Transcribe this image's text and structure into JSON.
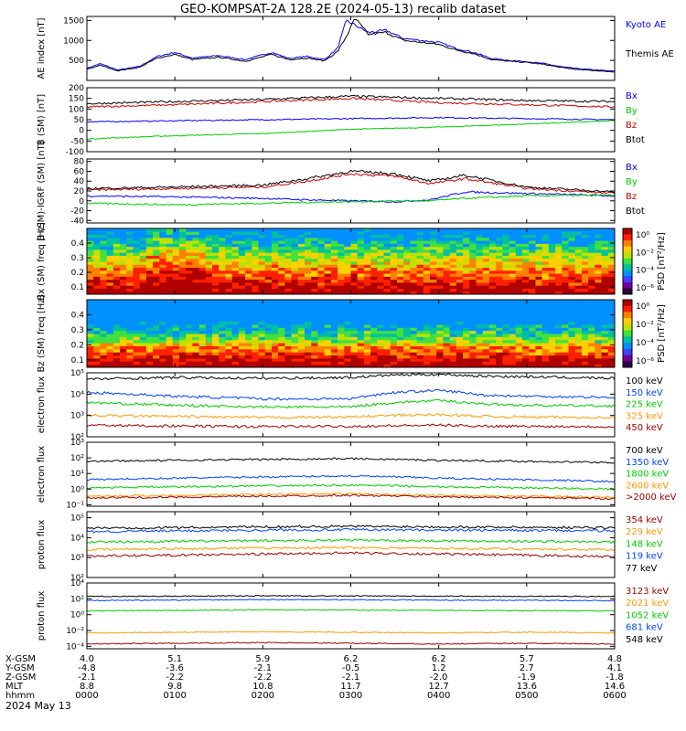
{
  "title": "GEO-KOMPSAT-2A 128.2E (2024-05-13) recalib dataset",
  "date_label": "2024 May 13",
  "colors": {
    "black": "#000000",
    "blue": "#0000ff",
    "green": "#00cc00",
    "red": "#cc0000",
    "orange": "#ff9900",
    "darkred": "#990000",
    "royalblue": "#0040ff"
  },
  "ephemeris": {
    "row_labels": [
      "X-GSM",
      "Y-GSM",
      "Z-GSM",
      "MLT",
      "hhmm"
    ],
    "columns": [
      [
        "4.0",
        "-4.8",
        "-2.1",
        "8.8",
        "0000"
      ],
      [
        "5.1",
        "-3.6",
        "-2.2",
        "9.8",
        "0100"
      ],
      [
        "5.9",
        "-2.1",
        "-2.2",
        "10.8",
        "0200"
      ],
      [
        "6.2",
        "-0.5",
        "-2.1",
        "11.7",
        "0300"
      ],
      [
        "6.2",
        "1.2",
        "-2.0",
        "12.7",
        "0400"
      ],
      [
        "5.7",
        "2.7",
        "-1.9",
        "13.6",
        "0500"
      ],
      [
        "4.8",
        "4.1",
        "-1.8",
        "14.6",
        "0600"
      ]
    ]
  },
  "chart_data": [
    {
      "type": "line",
      "ylabel": "AE index [nT]",
      "yticks": [
        "500",
        "1000",
        "1500"
      ],
      "ylim": [
        0,
        1600
      ],
      "x_hours": [
        0,
        6
      ],
      "series": [
        {
          "name": "Kyoto AE",
          "color": "#0000ff",
          "x": [
            0,
            0.15,
            0.35,
            0.6,
            0.8,
            1.0,
            1.2,
            1.5,
            1.8,
            2.1,
            2.3,
            2.5,
            2.7,
            2.85,
            2.95,
            3.05,
            3.2,
            3.4,
            3.6,
            3.8,
            4.0,
            4.2,
            4.4,
            4.6,
            4.8,
            5.0,
            5.2,
            5.4,
            5.6,
            5.8,
            6.0
          ],
          "values": [
            300,
            420,
            260,
            350,
            600,
            700,
            560,
            620,
            520,
            700,
            550,
            600,
            520,
            800,
            1500,
            1380,
            1200,
            1250,
            1050,
            1000,
            950,
            800,
            700,
            550,
            500,
            470,
            420,
            340,
            290,
            260,
            230
          ]
        },
        {
          "name": "Themis AE",
          "color": "#000000",
          "x": [
            0,
            0.15,
            0.35,
            0.6,
            0.8,
            1.0,
            1.2,
            1.5,
            1.8,
            2.1,
            2.3,
            2.5,
            2.7,
            2.85,
            2.95,
            3.05,
            3.2,
            3.4,
            3.6,
            3.8,
            4.0,
            4.2,
            4.4,
            4.6,
            4.8,
            5.0,
            5.2,
            5.4,
            5.6,
            5.8,
            6.0
          ],
          "values": [
            280,
            380,
            240,
            330,
            560,
            650,
            520,
            580,
            480,
            650,
            520,
            560,
            490,
            720,
            1100,
            1550,
            1150,
            1200,
            1000,
            950,
            900,
            760,
            670,
            520,
            480,
            450,
            400,
            320,
            270,
            240,
            210
          ]
        }
      ]
    },
    {
      "type": "line",
      "ylabel": "B (SM) [nT]",
      "yticks": [
        "-100",
        "-50",
        "0",
        "50",
        "100",
        "150",
        "200"
      ],
      "ylim": [
        -100,
        200
      ],
      "x_hours": [
        0,
        6
      ],
      "series": [
        {
          "name": "Bx",
          "color": "#0000ff",
          "x": [
            0,
            1,
            2,
            3,
            4,
            5,
            6
          ],
          "values": [
            40,
            45,
            50,
            55,
            60,
            55,
            50
          ]
        },
        {
          "name": "By",
          "color": "#00cc00",
          "x": [
            0,
            1,
            2,
            3,
            4,
            5,
            6
          ],
          "values": [
            -40,
            -25,
            -15,
            5,
            15,
            30,
            45
          ]
        },
        {
          "name": "Bz",
          "color": "#cc0000",
          "x": [
            0,
            1,
            2,
            3,
            4,
            5,
            6
          ],
          "values": [
            110,
            120,
            135,
            150,
            130,
            120,
            110
          ]
        },
        {
          "name": "Btot",
          "color": "#000000",
          "x": [
            0,
            1,
            2,
            3,
            4,
            5,
            6
          ],
          "values": [
            125,
            135,
            145,
            160,
            150,
            140,
            135
          ]
        }
      ]
    },
    {
      "type": "line",
      "ylabel": "B (SM)-IGRF (SM) [nT]",
      "yticks": [
        "-40",
        "-20",
        "0",
        "20",
        "40",
        "60",
        "80"
      ],
      "ylim": [
        -45,
        85
      ],
      "x_hours": [
        0,
        6
      ],
      "series": [
        {
          "name": "Bx",
          "color": "#0000ff",
          "x": [
            0,
            1,
            2,
            2.5,
            3,
            3.5,
            3.9,
            4.3,
            5,
            6
          ],
          "values": [
            10,
            8,
            5,
            2,
            0,
            -2,
            2,
            18,
            15,
            10
          ]
        },
        {
          "name": "By",
          "color": "#00cc00",
          "x": [
            0,
            1,
            2,
            2.5,
            3,
            3.5,
            3.9,
            4.3,
            5,
            6
          ],
          "values": [
            -5,
            -8,
            -5,
            -3,
            -2,
            0,
            0,
            5,
            10,
            12
          ]
        },
        {
          "name": "Bz",
          "color": "#cc0000",
          "x": [
            0,
            1,
            2,
            2.5,
            3,
            3.5,
            3.9,
            4.3,
            5,
            6
          ],
          "values": [
            22,
            25,
            28,
            40,
            55,
            50,
            35,
            45,
            25,
            15
          ]
        },
        {
          "name": "Btot",
          "color": "#000000",
          "x": [
            0,
            1,
            2,
            2.5,
            3,
            3.5,
            3.9,
            4.3,
            5,
            6
          ],
          "values": [
            25,
            28,
            32,
            45,
            60,
            55,
            40,
            52,
            28,
            18
          ]
        }
      ]
    },
    {
      "type": "heatmap",
      "ylabel": "Bx (SM) freq [Hz]",
      "yticks": [
        "0.1",
        "0.2",
        "0.3",
        "0.4"
      ],
      "ylim": [
        0.05,
        0.5
      ],
      "colorbar_label": "PSD [nT²/Hz]",
      "colorbar_ticks": [
        "10⁰",
        "10⁻²",
        "10⁻⁴",
        "10⁻⁶"
      ]
    },
    {
      "type": "heatmap",
      "ylabel": "Bz (SM) freq [Hz]",
      "yticks": [
        "0.1",
        "0.2",
        "0.3",
        "0.4"
      ],
      "ylim": [
        0.05,
        0.5
      ],
      "colorbar_label": "PSD [nT²/Hz]",
      "colorbar_ticks": [
        "10⁰",
        "10⁻²",
        "10⁻⁴",
        "10⁻⁶"
      ]
    },
    {
      "type": "line",
      "ylabel": "electron flux",
      "log": true,
      "yticks": [
        "10²",
        "10³",
        "10⁴",
        "10⁵"
      ],
      "ylim": [
        100,
        100000
      ],
      "x_hours": [
        0,
        6
      ],
      "series": [
        {
          "name": "100 keV",
          "color": "#000000",
          "x": [
            0,
            1,
            2,
            3,
            3.5,
            4,
            4.5,
            5,
            6
          ],
          "values": [
            50000,
            60000,
            55000,
            60000,
            80000,
            85000,
            70000,
            65000,
            55000
          ]
        },
        {
          "name": "150 keV",
          "color": "#0040ff",
          "x": [
            0,
            1,
            2,
            3,
            3.5,
            4,
            4.5,
            5,
            6
          ],
          "values": [
            12000,
            8000,
            6000,
            6000,
            12000,
            15000,
            9000,
            8000,
            7000
          ]
        },
        {
          "name": "225 keV",
          "color": "#00cc00",
          "x": [
            0,
            1,
            2,
            3,
            3.5,
            4,
            4.5,
            5,
            6
          ],
          "values": [
            4000,
            3000,
            2500,
            2500,
            4000,
            5000,
            3500,
            3000,
            2800
          ]
        },
        {
          "name": "325 keV",
          "color": "#ff9900",
          "x": [
            0,
            1,
            2,
            3,
            3.5,
            4,
            4.5,
            5,
            6
          ],
          "values": [
            1000,
            900,
            800,
            850,
            1000,
            1100,
            900,
            850,
            800
          ]
        },
        {
          "name": "450 keV",
          "color": "#990000",
          "x": [
            0,
            1,
            2,
            3,
            3.5,
            4,
            4.5,
            5,
            6
          ],
          "values": [
            350,
            320,
            300,
            310,
            330,
            350,
            320,
            310,
            300
          ]
        }
      ]
    },
    {
      "type": "line",
      "ylabel": "electron flux",
      "log": true,
      "yticks": [
        "10⁻¹",
        "10⁰",
        "10¹",
        "10²",
        "10³"
      ],
      "ylim": [
        0.08,
        1000
      ],
      "x_hours": [
        0,
        6
      ],
      "series": [
        {
          "name": "700 keV",
          "color": "#000000",
          "x": [
            0,
            1,
            2,
            3,
            4,
            5,
            6
          ],
          "values": [
            60,
            70,
            80,
            90,
            70,
            60,
            50
          ]
        },
        {
          "name": "1350 keV",
          "color": "#0040ff",
          "x": [
            0,
            1,
            2,
            3,
            4,
            5,
            6
          ],
          "values": [
            4,
            5,
            6,
            7,
            5,
            4,
            3
          ]
        },
        {
          "name": "1800 keV",
          "color": "#00cc00",
          "x": [
            0,
            1,
            2,
            3,
            4,
            5,
            6
          ],
          "values": [
            1.2,
            1.4,
            1.6,
            1.8,
            1.4,
            1.2,
            1.0
          ]
        },
        {
          "name": "2600 keV",
          "color": "#ff9900",
          "x": [
            0,
            1,
            2,
            3,
            4,
            5,
            6
          ],
          "values": [
            0.35,
            0.4,
            0.45,
            0.5,
            0.4,
            0.35,
            0.3
          ]
        },
        {
          "name": ">2000 keV",
          "color": "#990000",
          "x": [
            0,
            1,
            2,
            3,
            4,
            5,
            6
          ],
          "values": [
            0.28,
            0.3,
            0.35,
            0.4,
            0.32,
            0.28,
            0.25
          ]
        }
      ]
    },
    {
      "type": "line",
      "ylabel": "proton flux",
      "log": true,
      "yticks": [
        "10²",
        "10³",
        "10⁴",
        "10⁵"
      ],
      "ylim": [
        100,
        200000
      ],
      "x_hours": [
        0,
        6
      ],
      "series": [
        {
          "name": "354 keV",
          "color": "#990000",
          "x": [
            0,
            1,
            2,
            3,
            4,
            5,
            6
          ],
          "values": [
            1200,
            1300,
            1500,
            1700,
            1500,
            1300,
            1100
          ]
        },
        {
          "name": "229 keV",
          "color": "#ff9900",
          "x": [
            0,
            1,
            2,
            3,
            4,
            5,
            6
          ],
          "values": [
            2500,
            2800,
            3000,
            3200,
            2900,
            2700,
            2500
          ]
        },
        {
          "name": "148 keV",
          "color": "#00cc00",
          "x": [
            0,
            1,
            2,
            3,
            4,
            5,
            6
          ],
          "values": [
            6000,
            6500,
            7000,
            7500,
            7000,
            6500,
            6000
          ]
        },
        {
          "name": "119 keV",
          "color": "#0040ff",
          "x": [
            0,
            1,
            2,
            3,
            4,
            5,
            6
          ],
          "values": [
            20000,
            22000,
            24000,
            25000,
            24000,
            23000,
            22000
          ]
        },
        {
          "name": "77 keV",
          "color": "#000000",
          "x": [
            0,
            1,
            2,
            3,
            4,
            5,
            6
          ],
          "values": [
            30000,
            32000,
            35000,
            37000,
            35000,
            33000,
            32000
          ]
        }
      ]
    },
    {
      "type": "line",
      "ylabel": "proton flux",
      "log": true,
      "yticks": [
        "10⁻⁴",
        "10⁻²",
        "10⁰",
        "10²",
        "10⁴"
      ],
      "ylim": [
        5e-05,
        10000
      ],
      "x_hours": [
        0,
        6
      ],
      "series": [
        {
          "name": "3123 keV",
          "color": "#990000",
          "x": [
            0,
            1,
            2,
            3,
            4,
            5,
            6
          ],
          "values": [
            0.0002,
            0.00025,
            0.0003,
            0.00025,
            0.0002,
            0.00025,
            0.0002
          ]
        },
        {
          "name": "2021 keV",
          "color": "#ff9900",
          "x": [
            0,
            1,
            2,
            3,
            4,
            5,
            6
          ],
          "values": [
            0.005,
            0.006,
            0.007,
            0.006,
            0.005,
            0.006,
            0.005
          ]
        },
        {
          "name": "1052 keV",
          "color": "#00cc00",
          "x": [
            0,
            1,
            2,
            3,
            4,
            5,
            6
          ],
          "values": [
            3,
            3.5,
            4,
            3.8,
            3.5,
            3.2,
            3
          ]
        },
        {
          "name": "681 keV",
          "color": "#0040ff",
          "x": [
            0,
            1,
            2,
            3,
            4,
            5,
            6
          ],
          "values": [
            60,
            70,
            80,
            75,
            70,
            65,
            60
          ]
        },
        {
          "name": "548 keV",
          "color": "#000000",
          "x": [
            0,
            1,
            2,
            3,
            4,
            5,
            6
          ],
          "values": [
            200,
            220,
            240,
            230,
            220,
            210,
            200
          ]
        }
      ]
    }
  ]
}
